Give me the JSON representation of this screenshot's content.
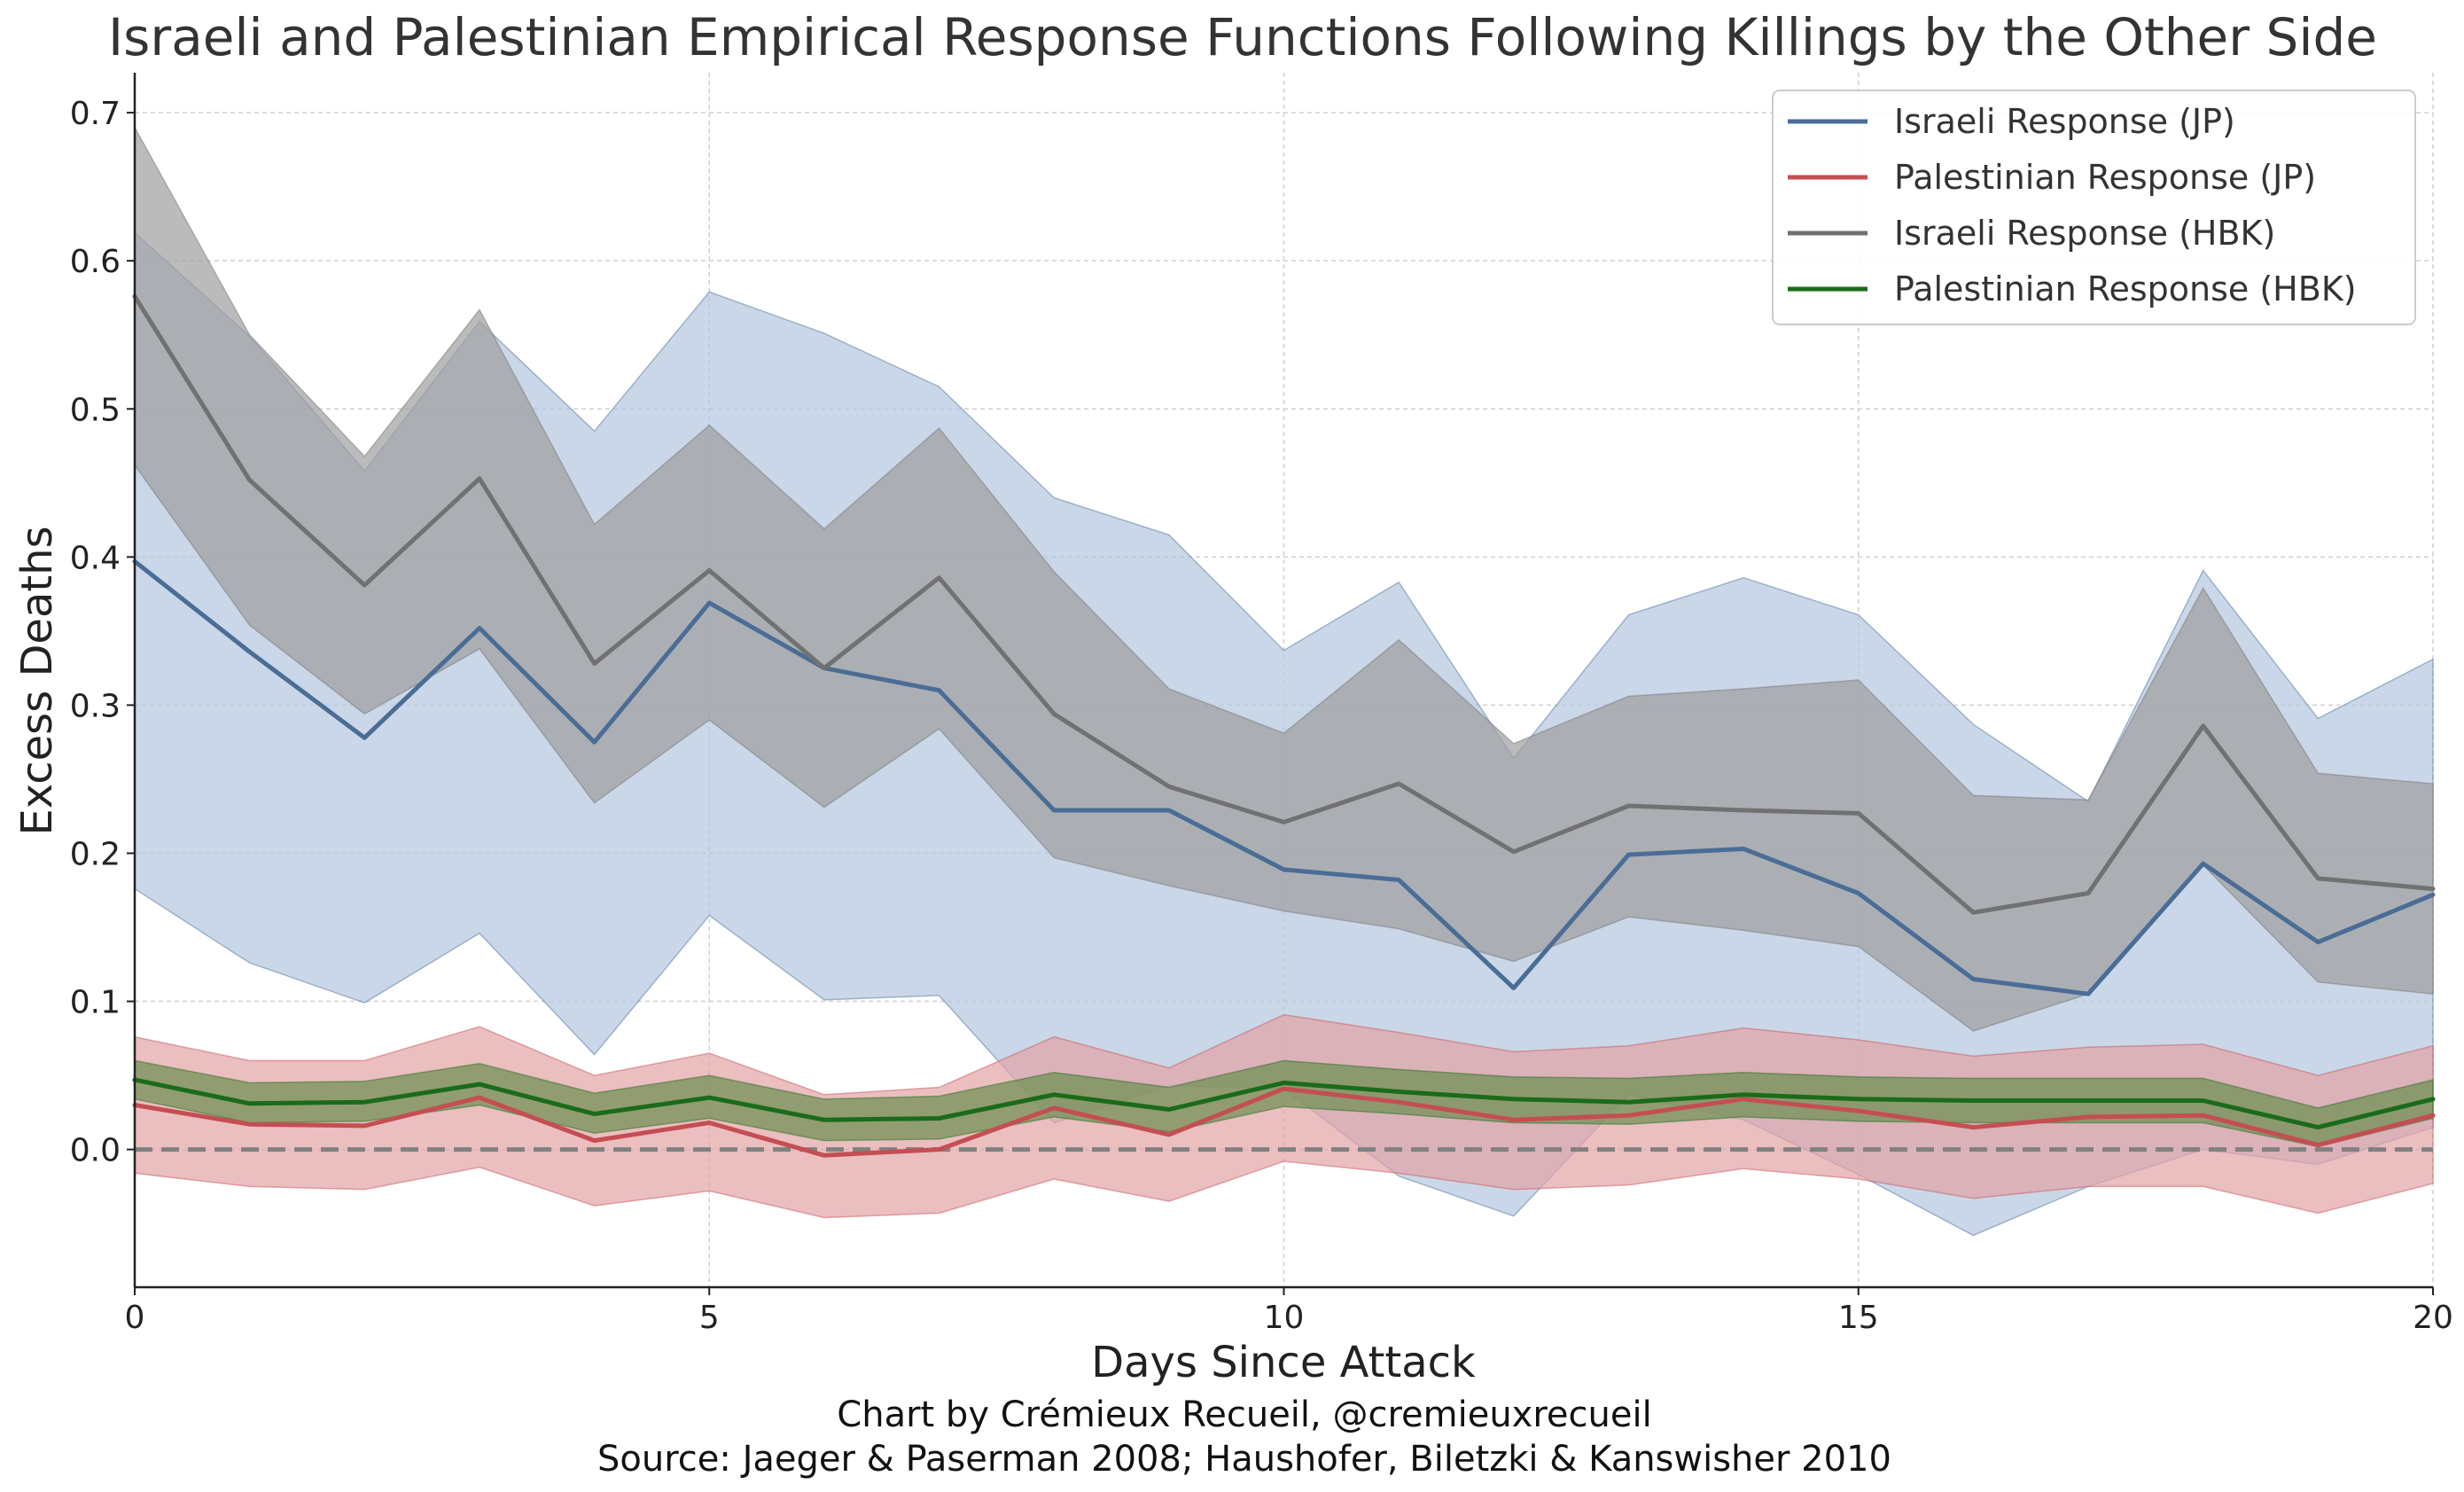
{
  "chart_data": {
    "type": "line",
    "title": "Israeli and Palestinian Empirical Response Functions Following Killings by the Other Side",
    "xlabel": "Days Since Attack",
    "ylabel": "Excess Deaths",
    "xlim": [
      0,
      20
    ],
    "ylim": [
      -0.093,
      0.727
    ],
    "x_ticks": [
      0,
      5,
      10,
      15,
      20
    ],
    "y_ticks": [
      0.0,
      0.1,
      0.2,
      0.3,
      0.4,
      0.5,
      0.6,
      0.7
    ],
    "grid": true,
    "legend_position": "top-right",
    "reference_line": {
      "y": 0.0,
      "style": "dashed",
      "color": "#808080"
    },
    "x": [
      0,
      1,
      2,
      3,
      4,
      5,
      6,
      7,
      8,
      9,
      10,
      11,
      12,
      13,
      14,
      15,
      16,
      17,
      18,
      19,
      20
    ],
    "series": [
      {
        "name": "Israeli Response (JP)",
        "color": "#4a6d96",
        "band_color": "#b4c6de",
        "values": [
          0.397,
          0.336,
          0.278,
          0.352,
          0.275,
          0.369,
          0.325,
          0.31,
          0.229,
          0.229,
          0.189,
          0.182,
          0.109,
          0.199,
          0.203,
          0.173,
          0.115,
          0.105,
          0.193,
          0.14,
          0.172
        ],
        "lower": [
          0.176,
          0.126,
          0.099,
          0.146,
          0.064,
          0.158,
          0.101,
          0.104,
          0.018,
          0.043,
          0.041,
          -0.018,
          -0.045,
          0.037,
          0.02,
          -0.017,
          -0.058,
          -0.025,
          0.0,
          -0.01,
          0.015
        ],
        "upper": [
          0.619,
          0.549,
          0.458,
          0.559,
          0.485,
          0.579,
          0.551,
          0.515,
          0.44,
          0.415,
          0.337,
          0.383,
          0.264,
          0.361,
          0.386,
          0.361,
          0.287,
          0.235,
          0.391,
          0.291,
          0.331
        ]
      },
      {
        "name": "Palestinian Response (JP)",
        "color": "#c44e52",
        "band_color": "#e3a3a5",
        "values": [
          0.03,
          0.017,
          0.016,
          0.035,
          0.006,
          0.018,
          -0.004,
          0.0,
          0.028,
          0.01,
          0.041,
          0.032,
          0.02,
          0.023,
          0.034,
          0.026,
          0.015,
          0.022,
          0.023,
          0.003,
          0.023
        ],
        "lower": [
          -0.016,
          -0.025,
          -0.027,
          -0.012,
          -0.038,
          -0.028,
          -0.046,
          -0.043,
          -0.02,
          -0.035,
          -0.008,
          -0.016,
          -0.027,
          -0.024,
          -0.013,
          -0.02,
          -0.033,
          -0.025,
          -0.025,
          -0.043,
          -0.023
        ],
        "upper": [
          0.076,
          0.06,
          0.06,
          0.083,
          0.05,
          0.065,
          0.037,
          0.042,
          0.076,
          0.055,
          0.091,
          0.079,
          0.066,
          0.07,
          0.082,
          0.074,
          0.063,
          0.069,
          0.071,
          0.05,
          0.07
        ]
      },
      {
        "name": "Israeli Response (HBK)",
        "color": "#717171",
        "band_color": "#9e9e9e",
        "values": [
          0.576,
          0.452,
          0.381,
          0.453,
          0.328,
          0.391,
          0.325,
          0.386,
          0.294,
          0.245,
          0.221,
          0.247,
          0.201,
          0.232,
          0.229,
          0.227,
          0.16,
          0.173,
          0.286,
          0.183,
          0.176
        ],
        "lower": [
          0.462,
          0.354,
          0.294,
          0.338,
          0.234,
          0.29,
          0.231,
          0.284,
          0.197,
          0.178,
          0.161,
          0.149,
          0.127,
          0.157,
          0.148,
          0.137,
          0.08,
          0.105,
          0.192,
          0.113,
          0.105
        ],
        "upper": [
          0.69,
          0.55,
          0.468,
          0.567,
          0.422,
          0.489,
          0.419,
          0.487,
          0.39,
          0.311,
          0.281,
          0.344,
          0.274,
          0.306,
          0.311,
          0.317,
          0.239,
          0.236,
          0.379,
          0.254,
          0.247
        ]
      },
      {
        "name": "Palestinian Response (HBK)",
        "color": "#1a6b1a",
        "band_color": "#6b8f4f",
        "values": [
          0.047,
          0.031,
          0.032,
          0.044,
          0.024,
          0.035,
          0.02,
          0.021,
          0.037,
          0.027,
          0.045,
          0.039,
          0.034,
          0.032,
          0.037,
          0.034,
          0.033,
          0.033,
          0.033,
          0.015,
          0.034
        ],
        "lower": [
          0.034,
          0.018,
          0.019,
          0.03,
          0.011,
          0.021,
          0.006,
          0.007,
          0.022,
          0.012,
          0.029,
          0.024,
          0.018,
          0.017,
          0.022,
          0.019,
          0.018,
          0.018,
          0.018,
          0.002,
          0.021
        ],
        "upper": [
          0.06,
          0.045,
          0.046,
          0.058,
          0.038,
          0.05,
          0.034,
          0.036,
          0.052,
          0.042,
          0.06,
          0.054,
          0.049,
          0.048,
          0.052,
          0.049,
          0.048,
          0.048,
          0.048,
          0.028,
          0.047
        ]
      }
    ],
    "credit": "Chart by Crémieux Recueil, @cremieuxrecueil",
    "source": "Source: Jaeger & Paserman 2008; Haushofer, Biletzki & Kanswisher 2010"
  }
}
